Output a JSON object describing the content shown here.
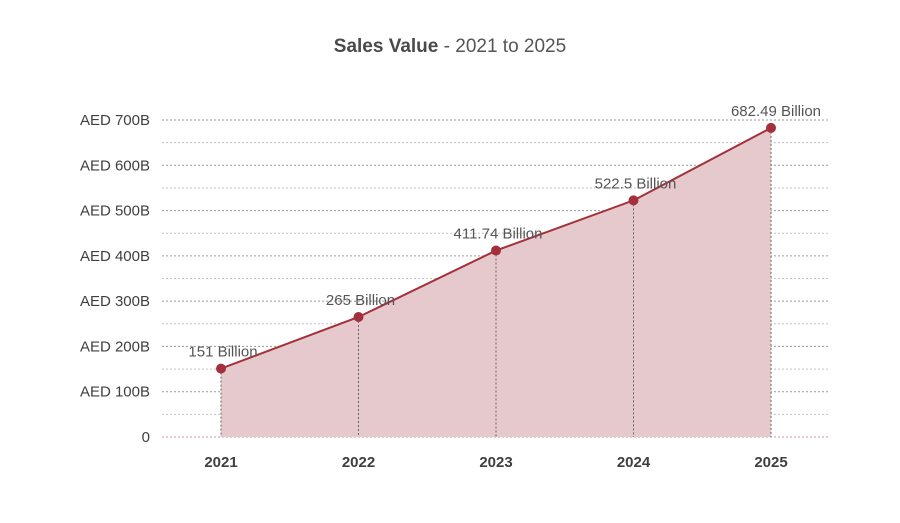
{
  "chart_data": {
    "type": "area",
    "title": "Sales Value",
    "title_separator": " - ",
    "subtitle": "2021 to 2025",
    "xlabel": "",
    "ylabel": "",
    "categories": [
      "2021",
      "2022",
      "2023",
      "2024",
      "2025"
    ],
    "series": [
      {
        "name": "Sales Value",
        "values": [
          151,
          265,
          411.74,
          522.5,
          682.49
        ],
        "data_labels": [
          "151 Billion",
          "265 Billion",
          "411.74 Billion",
          "522.5 Billion",
          "682.49 Billion"
        ]
      }
    ],
    "ylim": [
      0,
      700
    ],
    "yticks": [
      0,
      100,
      200,
      300,
      400,
      500,
      600,
      700
    ],
    "ytick_labels": [
      "0",
      "AED 100B",
      "AED 200B",
      "AED 300B",
      "AED 400B",
      "AED 500B",
      "AED 600B",
      "AED 700B"
    ],
    "grid": true,
    "legend": "none",
    "colors": {
      "line": "#a3303a",
      "marker": "#a3303a",
      "fill": "#e6c9cc",
      "grid": "#9a9a9a",
      "text": "#555555",
      "axis_text": "#3f3f3f"
    }
  }
}
